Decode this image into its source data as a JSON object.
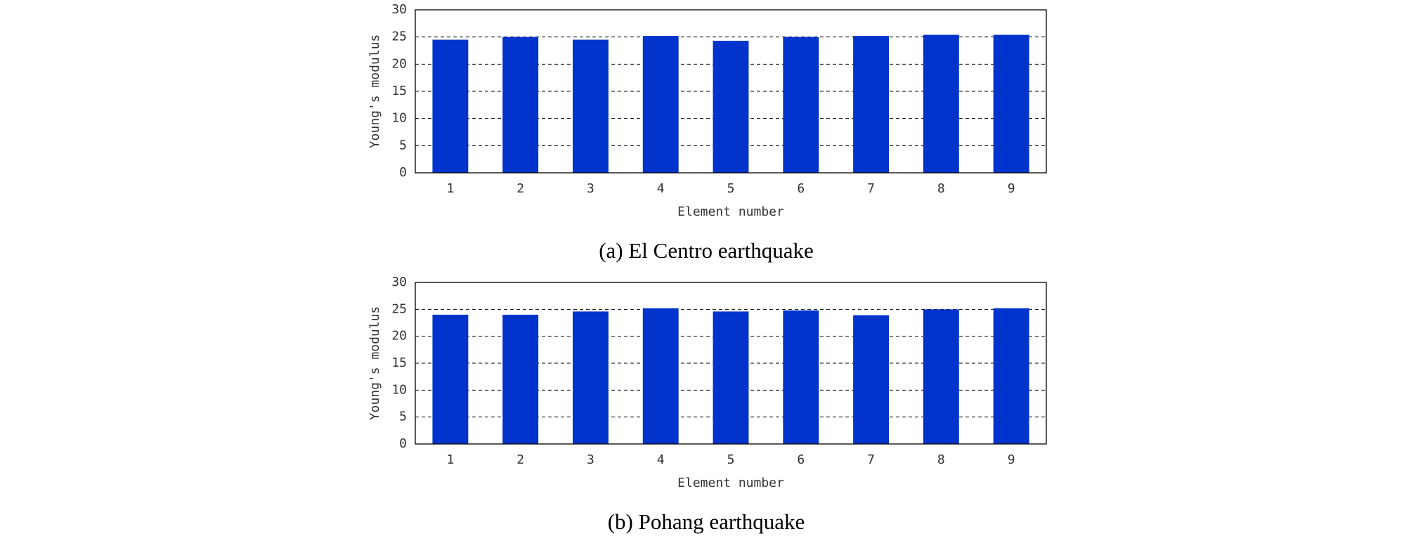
{
  "chart_data": [
    {
      "type": "bar",
      "caption": "(a) El Centro earthquake",
      "x_label": "Element number",
      "y_label": "Young's modulus",
      "categories": [
        "1",
        "2",
        "3",
        "4",
        "5",
        "6",
        "7",
        "8",
        "9"
      ],
      "values": [
        24.5,
        25,
        24.5,
        25.2,
        24.3,
        25,
        25.2,
        25.4,
        25.4
      ],
      "color": "#0033cc",
      "ylim": [
        0,
        30
      ],
      "yticks": [
        0,
        5,
        10,
        15,
        20,
        25,
        30
      ],
      "grid": true
    },
    {
      "type": "bar",
      "caption": "(b) Pohang earthquake",
      "x_label": "Element number",
      "y_label": "Young's modulus",
      "categories": [
        "1",
        "2",
        "3",
        "4",
        "5",
        "6",
        "7",
        "8",
        "9"
      ],
      "values": [
        24,
        24,
        24.6,
        25.2,
        24.6,
        24.8,
        23.9,
        25,
        25.2
      ],
      "color": "#0033cc",
      "ylim": [
        0,
        30
      ],
      "yticks": [
        0,
        5,
        10,
        15,
        20,
        25,
        30
      ],
      "grid": true
    }
  ]
}
